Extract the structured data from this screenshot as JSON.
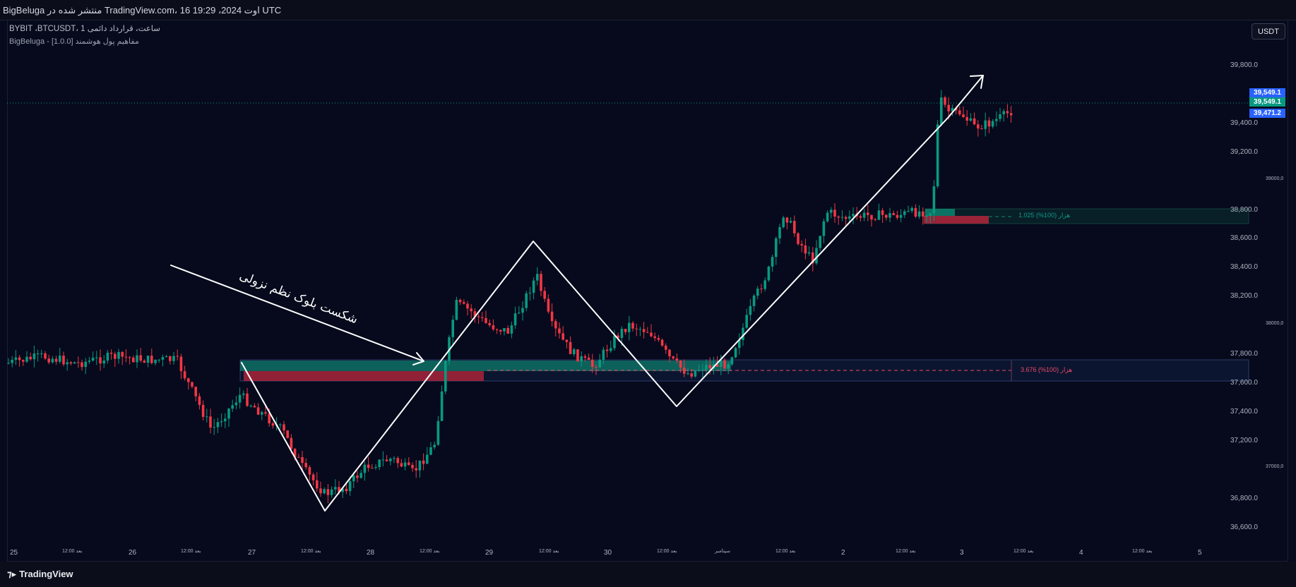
{
  "header": {
    "title": "BigBeluga منتشر شده در TradingView.com، 16 اوت 2024، 19:29 UTC"
  },
  "legend": {
    "symbol_line": "BYBIT ،BTCUSDT، 1 ساعت، قرارداد دائمی",
    "indicator_line": "BigBeluga - مفاهیم پول هوشمند [1.0.0]"
  },
  "currency_button": "USDT",
  "price_tags": [
    {
      "text": "39,549.1",
      "color": "#2962ff"
    },
    {
      "text": "39,549.1",
      "color": "#089981"
    },
    {
      "text": "39,471.2",
      "color": "#2962ff"
    }
  ],
  "price_axis": {
    "labels": [
      "39,800.0",
      "39,400.0",
      "39,200.0",
      "39000,0",
      "38,800.0",
      "38,600.0",
      "38,400.0",
      "38,200.0",
      "38000,0",
      "37,800.0",
      "37,600.0",
      "37,400.0",
      "37,200.0",
      "37000,0",
      "36,800.0",
      "36,600.0"
    ]
  },
  "time_axis": {
    "labels": [
      "25",
      "12:00 بعد",
      "26",
      "12:00 بعد",
      "27",
      "12:00 بعد",
      "28",
      "12:00 بعد",
      "29",
      "12:00 بعد",
      "30",
      "12:00 بعد",
      "سپتامبر",
      "12:00 بعد",
      "2",
      "12:00 بعد",
      "3",
      "12:00 بعد",
      "4",
      "12:00 بعد",
      "5"
    ]
  },
  "zones": {
    "upper_label": "1.025 هزار (100%)",
    "lower_label": "3.676 هزار (100%)"
  },
  "annotation_text": "شکست بلوک نظم نزولی",
  "colors": {
    "up": "#089981",
    "down": "#f23645",
    "background": "#060a1c",
    "accent": "#2962ff"
  },
  "footer": {
    "brand": "TradingView",
    "brand_icon": "tradingview-logo-icon"
  }
}
